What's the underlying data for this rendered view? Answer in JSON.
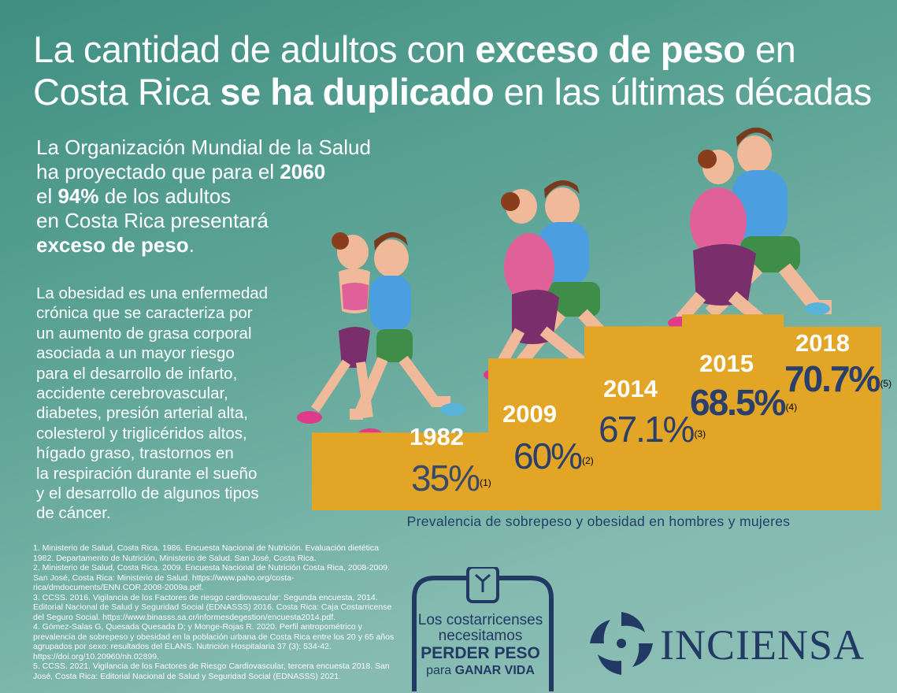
{
  "title": {
    "line1_a": "La cantidad de adultos con ",
    "line1_b": "exceso de peso",
    "line1_c": " en",
    "line2_a": "Costa Rica ",
    "line2_b": "se ha duplicado",
    "line2_c": " en las últimas décadas"
  },
  "who_projection": {
    "l1": "La Organización Mundial de la Salud",
    "l2_a": "ha proyectado que para el ",
    "l2_b": "2060",
    "l3_a": "el ",
    "l3_b": "94%",
    "l3_c": " de los adultos",
    "l4": "en Costa Rica presentará",
    "l5_b": "exceso de peso",
    "l5_c": "."
  },
  "obesity_text": {
    "lines": [
      "La obesidad es una enfermedad",
      "crónica que se caracteriza por",
      "un aumento de grasa corporal",
      "asociada a un mayor riesgo",
      "para el desarrollo de infarto,",
      "accidente cerebrovascular,",
      "diabetes, presión arterial alta,",
      "colesterol y triglicéridos altos,",
      "hígado graso, trastornos en",
      "la respiración durante el sueño",
      "y el desarrollo de algunos tipos",
      "de cáncer."
    ]
  },
  "chart_data": {
    "type": "bar",
    "categories": [
      "1982",
      "2009",
      "2014",
      "2015",
      "2018"
    ],
    "values": [
      35,
      60,
      67.1,
      68.5,
      70.7
    ],
    "value_labels": [
      "35%",
      "60%",
      "67.1%",
      "68.5%",
      "70.7%"
    ],
    "references": [
      "(1)",
      "(2)",
      "(3)",
      "(4)",
      "(5)"
    ],
    "xlabel": "Prevalencia de sobrepeso y obesidad en hombres y mujeres",
    "bar_color": "#e3a526"
  },
  "references": [
    "1. Ministerio de Salud, Costa Rica. 1986. Encuesta Nacional de Nutrición. Evaluación dietética 1982. Departamento de Nutrición, Ministerio de Salud. San José, Costa Rica.",
    "2. Ministerio de Salud, Costa Rica. 2009. Encuesta Nacional de Nutrición Costa Rica, 2008-2009. San José, Costa Rica: Ministerio de Salud. https://www.paho.org/costa-rica/dmdocuments/ENN.COR.2008-2009a.pdf.",
    "3. CCSS. 2016. Vigilancia de los Factores de riesgo cardiovascular: Segunda encuesta, 2014. Editorial Nacional de Salud y Seguridad Social (EDNASSS) 2016. Costa Rica: Caja Costarricense del Seguro Social. https://www.binasss.sa.cr/informesdegestion/encuesta2014.pdf.",
    "4. Gómez-Salas G, Quesada Quesada D; y Monge-Rojas R. 2020. Perfil antropométrico y prevalencia de sobrepeso y obesidad en la población urbana de Costa Rica entre los 20 y 65 años agrupados por sexo: resultados del ELANS. Nutrición Hospitalaria 37 (3): 534-42. https://doi.org/10.20960/nh.02899.",
    "5. CCSS. 2021. Vigilancia de los Factores de Riesgo Cardiovascular, tercera encuesta 2018. San José, Costa Rica: Editorial Nacional de Salud y Seguridad Social (EDNASSS) 2021."
  ],
  "campaign_badge": {
    "l1": "Los costarricenses",
    "l2": "necesitamos",
    "l3": "PERDER PESO",
    "l4_a": "para ",
    "l4_b": "GANAR VIDA",
    "color": "#223a63"
  },
  "inciensa": {
    "name": "INCIENSA",
    "color": "#223a63"
  },
  "colors": {
    "background": "#5fa597",
    "step": "#e3a526",
    "text_dark": "#2a3f6b"
  }
}
